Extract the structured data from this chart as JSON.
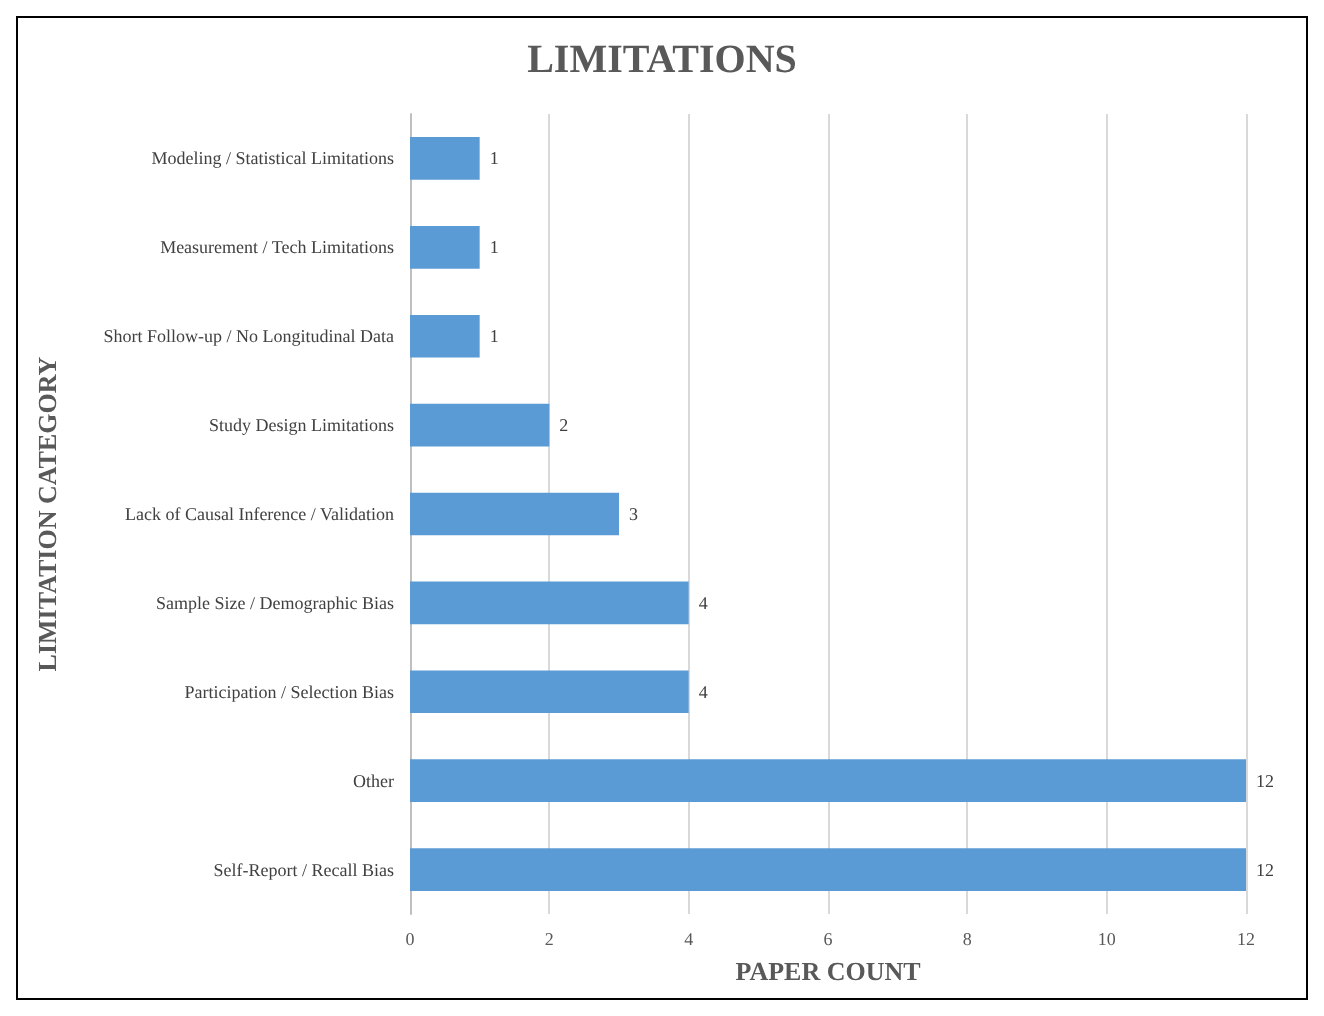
{
  "chart_data": {
    "type": "bar",
    "orientation": "horizontal",
    "title": "LIMITATIONS",
    "xlabel": "PAPER COUNT",
    "ylabel": "LIMITATION CATEGORY",
    "categories": [
      "Modeling / Statistical Limitations",
      "Measurement / Tech Limitations",
      "Short Follow-up / No Longitudinal Data",
      "Study Design Limitations",
      "Lack of Causal Inference / Validation",
      "Sample Size / Demographic Bias",
      "Participation / Selection Bias",
      "Other",
      "Self-Report / Recall Bias"
    ],
    "values": [
      1,
      1,
      1,
      2,
      3,
      4,
      4,
      12,
      12
    ],
    "color": "#5b9bd5",
    "xlim": [
      0,
      12
    ],
    "xticks": [
      0,
      2,
      4,
      6,
      8,
      10,
      12
    ],
    "grid": "x",
    "data_labels": true
  }
}
